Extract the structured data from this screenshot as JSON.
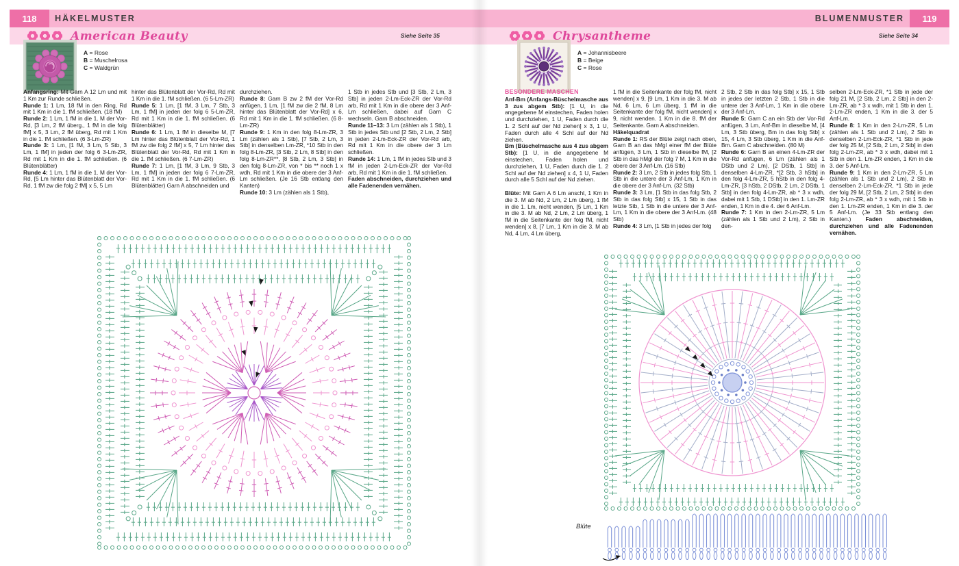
{
  "colors": {
    "header_strip": "#f9b3d1",
    "header_block": "#ee6fa7",
    "title_band": "#fcd7e8",
    "title_text": "#df489b",
    "subhead_pink": "#e8559e",
    "chart_green": "#58a687",
    "chart_pink": "#ef93cf",
    "chart_magenta": "#cf5cb4",
    "chart_purple": "#a855c8",
    "chart_gray": "#a3aec9",
    "chart_blue": "#7e92d8",
    "chart_blue_fill": "#c7d0f1",
    "marker_black": "#1a1a1a",
    "flower_icon": "#ef5da4"
  },
  "left_page": {
    "page_number": "118",
    "section": "HÄKELMUSTER",
    "title": "American Beauty",
    "see_page": "Siehe Seite 35",
    "color_key": [
      {
        "letter": "A",
        "name": "Rose"
      },
      {
        "letter": "B",
        "name": "Muschelrosa"
      },
      {
        "letter": "C",
        "name": "Waldgrün"
      }
    ],
    "columns": [
      [
        {
          "segs": [
            {
              "b": true,
              "t": "Anfangsring:"
            },
            {
              "t": " Mit Garn A 12 Lm und mit 1 Km zur Runde schließen."
            }
          ]
        },
        {
          "segs": [
            {
              "b": true,
              "t": "Runde 1:"
            },
            {
              "t": " 1 Lm, 18 fM in den Ring, Rd mit 1 Km in die 1. fM schließen. (18 fM)"
            }
          ]
        },
        {
          "segs": [
            {
              "b": true,
              "t": "Runde 2:"
            },
            {
              "t": " 1 Lm, 1 fM in die 1. M der Vor-Rd, [3 Lm, 2 fM überg., 1 fM in die folg fM] x 5, 3 Lm, 2 fM überg, Rd mit 1 Km in die 1. fM schließen. (6 3-Lm-ZR)"
            }
          ]
        },
        {
          "segs": [
            {
              "b": true,
              "t": "Runde 3:"
            },
            {
              "t": " 1 Lm, [1 fM, 3 Lm, 5 Stb, 3 Lm, 1 fM] in jeden der folg 6 3-Lm-ZR, Rd mit 1 Km in die 1. fM schließen. (6 Blütenblätter)"
            }
          ]
        },
        {
          "segs": [
            {
              "b": true,
              "t": "Runde 4:"
            },
            {
              "t": " 1 Lm, 1 fM in die 1. M der Vor-Rd, [5 Lm hinter das Blütenblatt der Vor-Rd, 1 fM zw die folg 2 fM] x 5, 5 Lm"
            }
          ]
        }
      ],
      [
        {
          "segs": [
            {
              "t": "hinter das Blütenblatt der Vor-Rd, Rd mit 1 Km in die 1. fM schließen. (6 5-Lm-ZR)"
            }
          ]
        },
        {
          "segs": [
            {
              "b": true,
              "t": "Runde 5:"
            },
            {
              "t": " 1 Lm, [1 fM, 3 Lm, 7 Stb, 3 Lm, 1 fM] in jeden der folg 6 5-Lm-ZR, Rd mit 1 Km in die 1. fM schließen. (6 Blütenblätter)"
            }
          ]
        },
        {
          "segs": [
            {
              "b": true,
              "t": "Runde 6:"
            },
            {
              "t": " 1 Lm, 1 fM in dieselbe M, [7 Lm hinter das Blütenblatt der Vor-Rd, 1 fM zw die folg 2 fM] x 5, 7 Lm hinter das Blütenblatt der Vor-Rd, Rd mit 1 Km in die 1. fM schließen. (6 7-Lm-ZR)"
            }
          ]
        },
        {
          "segs": [
            {
              "b": true,
              "t": "Runde 7:"
            },
            {
              "t": " 1 Lm, [1 fM, 3 Lm, 9 Stb, 3 Lm, 1 fM] in jeden der folg 6 7-Lm-ZR, Rd mit 1 Km in die 1. fM schließen. (6 Blütenblätter) Garn A abschneiden und"
            }
          ]
        }
      ],
      [
        {
          "segs": [
            {
              "t": "durchziehen."
            }
          ]
        },
        {
          "segs": [
            {
              "b": true,
              "t": "Runde 8:"
            },
            {
              "t": " Garn B zw 2 fM der Vor-Rd anfügen, 1 Lm, [1 fM zw die 2 fM, 8 Lm hinter das Blütenblatt der Vor-Rd] x 6, Rd mit 1 Km in die 1. fM schließen. (6 8-Lm-ZR)"
            }
          ]
        },
        {
          "segs": [
            {
              "b": true,
              "t": "Runde 9:"
            },
            {
              "t": " 1 Km in den folg 8-Lm-ZR, 3 Lm (zählen als 1 Stb), [7 Stb, 2 Lm, 3 Stb] in denselben Lm-ZR, *10 Stb in den folg 8-Lm-ZR, [3 Stb, 2 Lm, 8 Stb] in den folg 8-Lm-ZR**, [8 Stb, 2 Lm, 3 Stb] in den folg 8-Lm-ZR, von * bis ** noch 1 x wdh, Rd mit 1 Km in die obere der 3 Anf-Lm schließen. (Je 16 Stb entlang den Kanten)"
            }
          ]
        },
        {
          "segs": [
            {
              "b": true,
              "t": "Runde 10:"
            },
            {
              "t": " 3 Lm (zählen als 1 Stb),"
            }
          ]
        }
      ],
      [
        {
          "segs": [
            {
              "t": "1 Stb in jedes Stb und [3 Stb, 2 Lm, 3 Stb] in jeden 2-Lm-Eck-ZR der Vor-Rd arb, Rd mit 1 Km in die obere der 3 Anf-Lm schließen, dabei auf Garn C wechseln. Garn B abschneiden."
            }
          ]
        },
        {
          "segs": [
            {
              "b": true,
              "t": "Runde 11–13:"
            },
            {
              "t": " 3 Lm (zählen als 1 Stb), 1 Stb in jedes Stb und [2 Stb, 2 Lm, 2 Stb] in jeden 2-Lm-Eck-ZR der Vor-Rd arb, Rd mit 1 Km in die obere der 3 Lm schließen."
            }
          ]
        },
        {
          "segs": [
            {
              "b": true,
              "t": "Runde 14:"
            },
            {
              "t": " 1 Lm, 1 fM in jedes Stb und 3 fM in jeden 2-Lm-Eck-ZR der Vor-Rd arb, Rd mit 1 Km in die 1. fM schließen."
            }
          ]
        },
        {
          "segs": [
            {
              "b": true,
              "t": "Faden abschneiden, durchziehen und alle Fadenenden vernähen."
            }
          ]
        }
      ]
    ]
  },
  "right_page": {
    "page_number": "119",
    "section": "BLUMENMUSTER",
    "title": "Chrysantheme",
    "see_page": "Siehe Seite 34",
    "chart_label": "Blüte",
    "color_key": [
      {
        "letter": "A",
        "name": "Johannisbeere"
      },
      {
        "letter": "B",
        "name": "Beige"
      },
      {
        "letter": "C",
        "name": "Rose"
      }
    ],
    "columns": [
      [
        {
          "cls": "ph-pink",
          "segs": [
            {
              "b": true,
              "t": "BESONDERE MASCHEN"
            }
          ]
        },
        {
          "segs": [
            {
              "b": true,
              "t": "Anf-Bm (Anfangs-Büschelmasche aus 3 zus abgem Stb):"
            },
            {
              "t": " [1 U, in die angegebene M einstechen, Faden holen und durchziehen, 1 U, Faden durch die 1. 2 Schl auf der Nd ziehen] x 3, 1 U, Faden durch alle 4 Schl auf der Nd ziehen."
            }
          ]
        },
        {
          "segs": [
            {
              "b": true,
              "t": "Bm (Büschelmasche aus 4 zus abgem Stb):"
            },
            {
              "t": " [1 U, in die angegebene M einstechen, Faden holen und durchziehen, 1 U, Faden durch die 1. 2 Schl auf der Nd ziehen] x 4, 1 U, Faden durch alle 5 Schl auf der Nd ziehen."
            }
          ]
        },
        {
          "cls": "mt",
          "segs": [
            {
              "b": true,
              "t": "Blüte:"
            },
            {
              "t": " Mit Garn A 6 Lm anschl, 1 Km in die 3. M ab Nd, 2 Lm, 2 Lm überg, 1 fM in die 1. Lm, nicht wenden, [5 Lm, 1 Km in die 3. M ab Nd, 2 Lm, 2 Lm überg, 1 fM in die Seitenkante der folg fM, nicht wenden] x 8, [7 Lm, 1 Km in die 3. M ab Nd, 4 Lm, 4 Lm überg,"
            }
          ]
        }
      ],
      [
        {
          "segs": [
            {
              "t": "1 fM in die Seitenkante der folg fM, nicht wenden] x 9, [9 Lm, 1 Km in die 3. M ab Nd, 6 Lm, 6 Lm überg, 1 fM in die Seitenkante der folg fM, nicht wenden] x 9, nicht wenden. 1 Km in die 8. fM der Seitenkante. Garn A abschneiden."
            }
          ]
        },
        {
          "segs": [
            {
              "b": true,
              "t": "Häkelquadrat"
            }
          ]
        },
        {
          "segs": [
            {
              "b": true,
              "t": "Runde 1:"
            },
            {
              "t": " RS der Blüte zeigt nach oben, Garn B an das hMgl einer fM der Blüte anfügen, 3 Lm, 1 Stb in dieselbe fM, [2 Stb in das hMgl der folg 7 M, 1 Km in die obere der 3 Anf-Lm. (16 Stb)"
            }
          ]
        },
        {
          "segs": [
            {
              "b": true,
              "t": "Runde 2:"
            },
            {
              "t": " 3 Lm, 2 Stb in jedes folg Stb, 1 Stb in die untere der 3 Anf-Lm, 1 Km in die obere der 3 Anf-Lm. (32 Stb)"
            }
          ]
        },
        {
          "segs": [
            {
              "b": true,
              "t": "Runde 3:"
            },
            {
              "t": " 3 Lm, [1 Stb in das folg Stb, 2 Stb in das folg Stb] x 15, 1 Stb in das letzte Stb, 1 Stb in die untere der 3 Anf-Lm, 1 Km in die obere der 3 Anf-Lm. (48 Stb)"
            }
          ]
        },
        {
          "segs": [
            {
              "b": true,
              "t": "Runde 4:"
            },
            {
              "t": " 3 Lm, [1 Stb in jedes der folg"
            }
          ]
        }
      ],
      [
        {
          "segs": [
            {
              "t": "2 Stb, 2 Stb in das folg Stb] x 15, 1 Stb in jedes der letzten 2 Stb, 1 Stb in die untere der 3 Anf-Lm, 1 Km in die obere der 3 Anf-Lm."
            }
          ]
        },
        {
          "segs": [
            {
              "b": true,
              "t": "Runde 5:"
            },
            {
              "t": " Garn C an ein Stb der Vor-Rd anfügen, 3 Lm, Anf-Bm in dieselbe M, [4 Lm, 3 Stb überg, Bm in das folg Stb] x 15, 4 Lm, 3 Stb überg, 1 Km in die Anf-Bm. Garn C abschneiden. (80 M)"
            }
          ]
        },
        {
          "segs": [
            {
              "b": true,
              "t": "Runde 6:"
            },
            {
              "t": " Garn B an einen 4-Lm-ZR der Vor-Rd anfügen, 6 Lm (zählen als 1 DStb und 2 Lm), [2 DStb, 1 Stb] in denselben 4-Lm-ZR, *[2 Stb, 3 hStb] in den folg 4-Lm-ZR, 5 hStb in den folg 4-Lm-ZR, [3 hStb, 2 DStb, 2 Lm, 2 DStb, 1 Stb] in den folg 4-Lm-ZR, ab * 3 x wdh, dabei mit 1 Stb, 1 DStb] in den 1. Lm-ZR enden, 1 Km in die 4. der 6 Anf-Lm."
            }
          ]
        },
        {
          "segs": [
            {
              "b": true,
              "t": "Runde 7:"
            },
            {
              "t": " 1 Km in den 2-Lm-ZR, 5 Lm (zählen als 1 Stb und 2 Lm), 2 Stb in den-"
            }
          ]
        }
      ],
      [
        {
          "segs": [
            {
              "t": "selben 2-Lm-Eck-ZR, *1 Stb in jede der folg 21 M, [2 Stb, 2 Lm, 2 Stb] in den 2-Lm-ZR, ab * 3 x wdh, mit 1 Stb in den 1. 2-Lm-ZR enden, 1 Km in die 3. der 5 Anf-Lm."
            }
          ]
        },
        {
          "segs": [
            {
              "b": true,
              "t": "Runde 8:"
            },
            {
              "t": " 1 Km in den 2-Lm-ZR, 5 Lm (zählen als 1 Stb und 2 Lm), 2 Stb in denselben 2-Lm-Eck-ZR, *1 Stb in jede der folg 25 M, [2 Stb, 2 Lm, 2 Stb] in den folg 2-Lm-ZR, ab * 3 x wdh, dabei mit 1 Stb in den 1. Lm-ZR enden, 1 Km in die 3. der 5 Anf-Lm."
            }
          ]
        },
        {
          "segs": [
            {
              "b": true,
              "t": "Runde 9:"
            },
            {
              "t": " 1 Km in den 2-Lm-ZR, 5 Lm (zählen als 1 Stb und 2 Lm), 2 Stb in denselben 2-Lm-Eck-ZR, *1 Stb in jede der folg 29 M, [2 Stb, 2 Lm, 2 Stb] in den folg 2-Lm-ZR, ab * 3 x wdh, mit 1 Stb in den 1. Lm-ZR enden, 1 Km in die 3. der 5 Anf-Lm. (Je 33 Stb entlang den Kanten.) "
            },
            {
              "b": true,
              "t": "Faden abschneiden, durchziehen und alle Fadenenden vernähen."
            }
          ]
        }
      ]
    ]
  }
}
